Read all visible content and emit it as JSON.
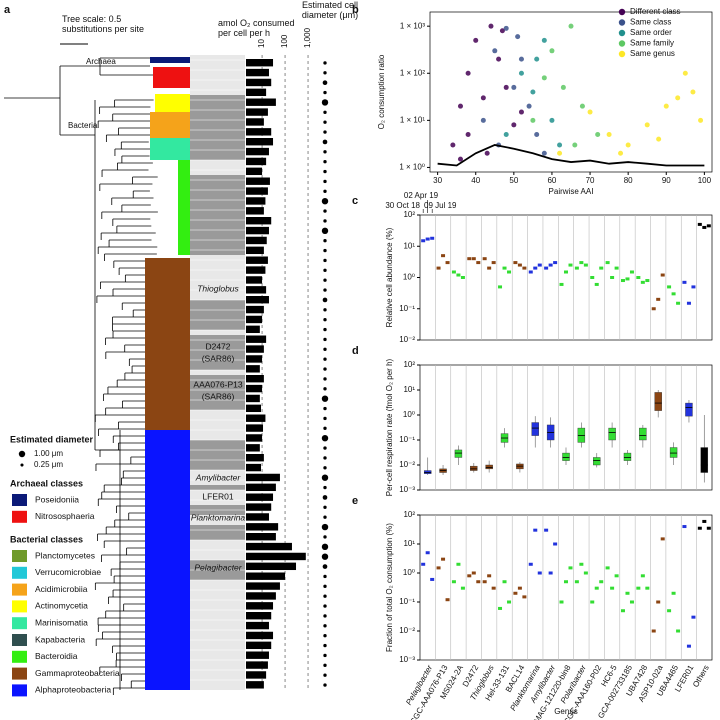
{
  "tree_panel": {
    "panel": "a",
    "tree_scale": "Tree scale: 0.5 substitutions per site",
    "archaea": "Archaea",
    "bacteria": "Bacteria",
    "clade_labels": [
      [
        "Thioglobus"
      ],
      [
        "D2472",
        "(SAR86)"
      ],
      [
        "AAA076-P13",
        "(SAR86)"
      ],
      [
        "Amylibacter"
      ],
      [
        "LFER01"
      ],
      [
        "Planktomarina"
      ],
      [
        "Pelagibacter"
      ]
    ],
    "size_legend": {
      "title": "Estimated diameter",
      "entries": [
        {
          "label": "1.00 μm",
          "value": 1.0
        },
        {
          "label": "0.25 μm",
          "value": 0.25
        }
      ]
    },
    "archaeal_classes": {
      "title": "Archaeal classes",
      "entries": [
        {
          "name": "Poseidoniia",
          "color": "#0b1a78"
        },
        {
          "name": "Nitrososphaeria",
          "color": "#ee1111"
        }
      ]
    },
    "bacterial_classes": {
      "title": "Bacterial classes",
      "entries": [
        {
          "name": "Planctomycetes",
          "color": "#6f9a2a"
        },
        {
          "name": "Verrucomicrobiae",
          "color": "#22c8d8"
        },
        {
          "name": "Acidimicrobiia",
          "color": "#f5a31a"
        },
        {
          "name": "Actinomycetia",
          "color": "#ffff00"
        },
        {
          "name": "Marinisomatia",
          "color": "#33e8a0"
        },
        {
          "name": "Kapabacteria",
          "color": "#2f4f4f"
        },
        {
          "name": "Bacteroidia",
          "color": "#33ee11"
        },
        {
          "name": "Gammaproteobacteria",
          "color": "#8b4513"
        },
        {
          "name": "Alphaproteobacteria",
          "color": "#0a14ff"
        }
      ]
    }
  },
  "chart_data": [
    {
      "type": "bar",
      "orientation": "horizontal",
      "title": "amol O₂ consumed per cell per h",
      "size_title": "Estimated cell diameter (μm)",
      "log_x": true,
      "color": "#000000",
      "xlim": [
        2,
        3000
      ],
      "xticks": [
        10,
        100,
        {
          "value": 1000,
          "label": "1,000"
        }
      ],
      "values": [
        30,
        20,
        25,
        15,
        40,
        18,
        12,
        25,
        30,
        20,
        15,
        10,
        22,
        18,
        14,
        12,
        25,
        20,
        16,
        12,
        18,
        14,
        10,
        15,
        20,
        12,
        10,
        8,
        15,
        12,
        10,
        8,
        12,
        10,
        8,
        9,
        14,
        11,
        10,
        8,
        12,
        9,
        60,
        40,
        30,
        25,
        20,
        50,
        40,
        200,
        800,
        300,
        100,
        60,
        40,
        30,
        25,
        20,
        30,
        25,
        20,
        18,
        15,
        12
      ],
      "sizes": [
        0.3,
        0.3,
        0.6,
        0.3,
        1.0,
        0.3,
        0.3,
        0.3,
        0.6,
        0.3,
        0.3,
        0.3,
        0.3,
        0.3,
        1.0,
        0.3,
        0.3,
        1.0,
        0.3,
        0.3,
        0.3,
        0.3,
        0.3,
        0.3,
        0.6,
        0.3,
        0.3,
        0.3,
        0.3,
        0.3,
        0.3,
        0.3,
        0.3,
        0.3,
        1.0,
        0.3,
        0.3,
        0.3,
        1.0,
        0.3,
        0.3,
        0.3,
        1.0,
        0.3,
        0.6,
        0.3,
        0.3,
        1.0,
        0.3,
        1.0,
        1.0,
        0.6,
        0.3,
        0.3,
        0.3,
        0.3,
        0.3,
        0.3,
        0.3,
        0.3,
        0.3,
        0.3,
        0.3,
        0.3
      ]
    },
    {
      "type": "scatter",
      "panel": "b",
      "x_label": "Pairwise AAI",
      "y_label": "O₂ consumption ratio",
      "log_y": true,
      "legend": "top-right",
      "xlim": [
        28,
        102
      ],
      "xticks": [
        30,
        40,
        50,
        60,
        70,
        80,
        90,
        100
      ],
      "ylim": [
        0.8,
        2000
      ],
      "yticks": [
        {
          "value": 1,
          "label": "1 × 10⁰"
        },
        {
          "value": 10,
          "label": "1 × 10¹"
        },
        {
          "value": 100,
          "label": "1 × 10²"
        },
        {
          "value": 1000,
          "label": "1 × 10³"
        }
      ],
      "series": [
        {
          "name": "Different class",
          "color": "#440154",
          "x": [
            34,
            36,
            38,
            40,
            42,
            44,
            46,
            48,
            50,
            38,
            43,
            47,
            52,
            36
          ],
          "values": [
            3,
            20,
            100,
            500,
            30,
            1000,
            200,
            50,
            8,
            5,
            2,
            800,
            15,
            1.5
          ]
        },
        {
          "name": "Same class",
          "color": "#3b528b",
          "x": [
            42,
            45,
            48,
            50,
            52,
            54,
            56,
            58,
            46,
            51
          ],
          "values": [
            10,
            300,
            900,
            50,
            200,
            20,
            5,
            2,
            3,
            600
          ]
        },
        {
          "name": "Same order",
          "color": "#21908d",
          "x": [
            48,
            52,
            55,
            58,
            60,
            62,
            56
          ],
          "values": [
            5,
            100,
            40,
            500,
            10,
            3,
            200
          ]
        },
        {
          "name": "Same family",
          "color": "#5dc863",
          "x": [
            55,
            60,
            63,
            65,
            68,
            72,
            58,
            66
          ],
          "values": [
            10,
            300,
            50,
            1000,
            20,
            5,
            80,
            3
          ]
        },
        {
          "name": "Same genus",
          "color": "#fde725",
          "x": [
            62,
            70,
            75,
            80,
            85,
            90,
            95,
            97,
            99,
            88,
            78,
            93
          ],
          "values": [
            2,
            15,
            5,
            3,
            8,
            20,
            100,
            40,
            10,
            4,
            2,
            30
          ]
        }
      ],
      "trend": {
        "color": "#000000",
        "x": [
          30,
          35,
          40,
          45,
          50,
          55,
          60,
          65,
          70,
          75,
          80,
          85,
          90,
          95,
          100
        ],
        "values": [
          1.2,
          1.1,
          2,
          3,
          2.5,
          2,
          1.5,
          1.3,
          1.4,
          1.2,
          1.3,
          1.2,
          1.1,
          1.1,
          1.1
        ]
      }
    },
    {
      "type": "dot",
      "panel": "c",
      "y_label": "Relative cell abundance (%)",
      "log_y": true,
      "ylim": [
        0.01,
        100
      ],
      "yticks": [
        {
          "value": 0.01,
          "label": "10⁻²"
        },
        {
          "value": 0.1,
          "label": "10⁻¹"
        },
        {
          "value": 1,
          "label": "10⁰"
        },
        {
          "value": 10,
          "label": "10¹"
        },
        {
          "value": 100,
          "label": "10²"
        }
      ],
      "category_colors": [
        "#2233dd",
        "#8b4513",
        "#33dd33",
        "#8b4513",
        "#8b4513",
        "#33dd33",
        "#8b4513",
        "#2233dd",
        "#2233dd",
        "#33dd33",
        "#33dd33",
        "#33dd33",
        "#33dd33",
        "#33dd33",
        "#33dd33",
        "#8b4513",
        "#33dd33",
        "#2233dd",
        "#000000"
      ],
      "series": [
        {
          "name": "30 Oct 18",
          "values": [
            15,
            2,
            1.5,
            4,
            4,
            0.5,
            3,
            1.5,
            2,
            0.6,
            2,
            1,
            3,
            0.8,
            1,
            0.1,
            0.5,
            0.7,
            50
          ]
        },
        {
          "name": "02 Apr 19",
          "values": [
            17,
            5,
            1.2,
            4,
            2,
            2,
            2.5,
            2,
            2.5,
            1.5,
            3,
            0.6,
            1,
            0.9,
            0.7,
            0.2,
            0.3,
            0.15,
            40
          ]
        },
        {
          "name": "09 Jul 19",
          "values": [
            18,
            3,
            1,
            3,
            3,
            1.5,
            2,
            2.5,
            3,
            2.5,
            2.5,
            2,
            2,
            1.5,
            0.8,
            1.2,
            0.15,
            0.5,
            45
          ]
        }
      ]
    },
    {
      "type": "box",
      "panel": "d",
      "y_label": "Per-cell respiration rate (fmol O₂ per h)",
      "log_y": true,
      "ylim": [
        0.001,
        100
      ],
      "yticks": [
        {
          "value": 0.001,
          "label": "10⁻³"
        },
        {
          "value": 0.01,
          "label": "10⁻²"
        },
        {
          "value": 0.1,
          "label": "10⁻¹"
        },
        {
          "value": 1,
          "label": "10⁰"
        },
        {
          "value": 10,
          "label": "10¹"
        },
        {
          "value": 100,
          "label": "10²"
        }
      ],
      "boxes": [
        {
          "min": 0.004,
          "q1": 0.0045,
          "median": 0.005,
          "q3": 0.006,
          "max": 0.02
        },
        {
          "min": 0.004,
          "q1": 0.005,
          "median": 0.006,
          "q3": 0.007,
          "max": 0.01
        },
        {
          "min": 0.01,
          "q1": 0.02,
          "median": 0.03,
          "q3": 0.04,
          "max": 0.06
        },
        {
          "min": 0.005,
          "q1": 0.006,
          "median": 0.007,
          "q3": 0.009,
          "max": 0.012
        },
        {
          "min": 0.005,
          "q1": 0.007,
          "median": 0.008,
          "q3": 0.01,
          "max": 0.015
        },
        {
          "min": 0.05,
          "q1": 0.08,
          "median": 0.12,
          "q3": 0.18,
          "max": 0.3
        },
        {
          "min": 0.005,
          "q1": 0.007,
          "median": 0.009,
          "q3": 0.011,
          "max": 0.013
        },
        {
          "min": 0.05,
          "q1": 0.15,
          "median": 0.3,
          "q3": 0.5,
          "max": 0.9
        },
        {
          "min": 0.05,
          "q1": 0.1,
          "median": 0.2,
          "q3": 0.4,
          "max": 0.8
        },
        {
          "min": 0.01,
          "q1": 0.015,
          "median": 0.02,
          "q3": 0.03,
          "max": 0.05
        },
        {
          "min": 0.05,
          "q1": 0.08,
          "median": 0.15,
          "q3": 0.3,
          "max": 0.5
        },
        {
          "min": 0.008,
          "q1": 0.01,
          "median": 0.015,
          "q3": 0.02,
          "max": 0.03
        },
        {
          "min": 0.05,
          "q1": 0.1,
          "median": 0.2,
          "q3": 0.3,
          "max": 0.5
        },
        {
          "min": 0.01,
          "q1": 0.015,
          "median": 0.02,
          "q3": 0.03,
          "max": 0.04
        },
        {
          "min": 0.05,
          "q1": 0.1,
          "median": 0.15,
          "q3": 0.3,
          "max": 0.4
        },
        {
          "min": 0.8,
          "q1": 1.5,
          "median": 3,
          "q3": 8,
          "max": 10
        },
        {
          "min": 0.01,
          "q1": 0.02,
          "median": 0.03,
          "q3": 0.05,
          "max": 0.08
        },
        {
          "min": 0.5,
          "q1": 0.9,
          "median": 2,
          "q3": 3,
          "max": 4
        },
        {
          "min": 0.002,
          "q1": 0.005,
          "median": 0.01,
          "q3": 0.05,
          "max": 1
        }
      ]
    },
    {
      "type": "dot",
      "panel": "e",
      "y_label": "Fraction of total O₂ consumption (%)",
      "x_label": "Genus",
      "log_y": true,
      "ylim": [
        0.001,
        100
      ],
      "yticks": [
        {
          "value": 0.001,
          "label": "10⁻³"
        },
        {
          "value": 0.01,
          "label": "10⁻²"
        },
        {
          "value": 0.1,
          "label": "10⁻¹"
        },
        {
          "value": 1,
          "label": "10⁰"
        },
        {
          "value": 10,
          "label": "10¹"
        },
        {
          "value": 100,
          "label": "10²"
        }
      ],
      "categories": [
        "Pelagibacter",
        "SCGC-AAA076-P13",
        "MS024-2A",
        "D2472",
        "Thioglobus",
        "Hel-33-131",
        "BACL14",
        "Planktomarina",
        "Amylibacter",
        "MAG-121220-bin8",
        "Polaribacter",
        "SCGC-AAA160-P02",
        "HC6-5",
        "GCA-002733185",
        "UBA7428",
        "ASP10-02a",
        "UBA4465",
        "LFER01",
        "Others"
      ],
      "series": [
        {
          "values": [
            2,
            1.5,
            0.5,
            0.8,
            0.5,
            0.06,
            0.2,
            2,
            30,
            0.1,
            0.5,
            0.1,
            1.5,
            0.05,
            0.3,
            0.01,
            0.05,
            40,
            35
          ]
        },
        {
          "values": [
            5,
            3,
            2,
            1,
            0.8,
            0.5,
            0.3,
            30,
            1,
            0.5,
            2,
            0.3,
            0.3,
            0.2,
            0.8,
            0.1,
            0.2,
            0.003,
            60
          ]
        },
        {
          "values": [
            0.6,
            0.12,
            0.3,
            0.5,
            0.3,
            0.1,
            0.15,
            1,
            10,
            1.5,
            1,
            0.5,
            0.8,
            0.1,
            0.3,
            15,
            0.01,
            0.03,
            35
          ]
        }
      ]
    }
  ]
}
